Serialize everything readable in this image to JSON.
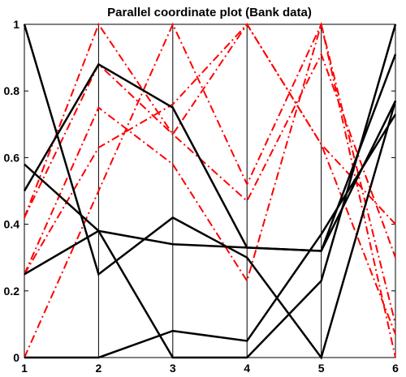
{
  "chart_data": {
    "type": "line",
    "title": "Parallel coordinate plot (Bank data)",
    "xlabel": "",
    "ylabel": "",
    "x": [
      1,
      2,
      3,
      4,
      5,
      6
    ],
    "xlim": [
      1,
      6
    ],
    "ylim": [
      0,
      1
    ],
    "x_ticks": [
      "1",
      "2",
      "3",
      "4",
      "5",
      "6"
    ],
    "y_ticks": [
      "0",
      "0.2",
      "0.4",
      "0.6",
      "0.8",
      "1"
    ],
    "grid": false,
    "legend": "none",
    "series": [
      {
        "group": "black-solid",
        "values": [
          1.0,
          0.25,
          0.42,
          0.3,
          0.0,
          0.77
        ]
      },
      {
        "group": "black-solid",
        "values": [
          0.5,
          0.88,
          0.75,
          0.33,
          0.32,
          0.77
        ]
      },
      {
        "group": "black-solid",
        "values": [
          0.58,
          0.38,
          0.0,
          0.0,
          0.23,
          1.0
        ]
      },
      {
        "group": "black-solid",
        "values": [
          0.25,
          0.38,
          0.34,
          0.33,
          0.32,
          0.91
        ]
      },
      {
        "group": "black-solid",
        "values": [
          0.0,
          0.0,
          0.08,
          0.05,
          0.37,
          0.73
        ]
      },
      {
        "group": "red-dashdot",
        "values": [
          0.42,
          1.0,
          0.67,
          1.0,
          0.64,
          0.07
        ]
      },
      {
        "group": "red-dashdot",
        "values": [
          0.0,
          0.5,
          1.0,
          0.52,
          1.0,
          0.0
        ]
      },
      {
        "group": "red-dashdot",
        "values": [
          0.25,
          0.75,
          0.58,
          0.23,
          1.0,
          0.1
        ]
      },
      {
        "group": "red-dashdot",
        "values": [
          0.42,
          0.88,
          0.67,
          0.47,
          0.91,
          0.3
        ]
      },
      {
        "group": "red-dashdot",
        "values": [
          0.25,
          0.63,
          0.76,
          1.0,
          0.64,
          0.4
        ]
      }
    ],
    "colors": {
      "black-solid": "#000000",
      "red-dashdot": "#ff0000"
    }
  }
}
